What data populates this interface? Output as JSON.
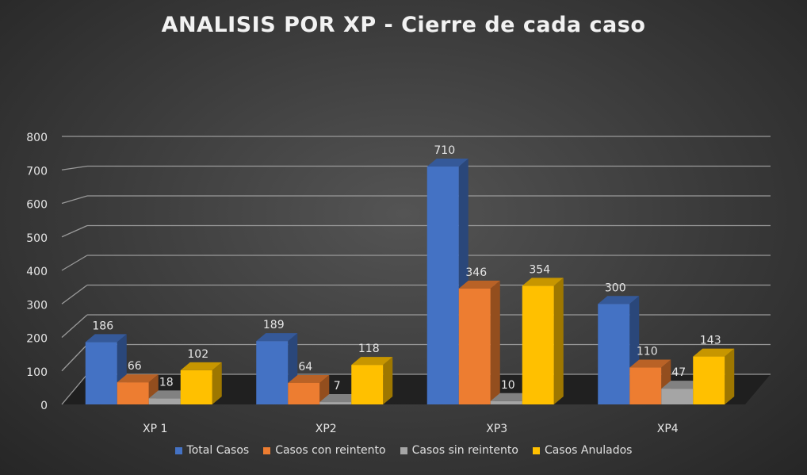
{
  "chart_data": {
    "type": "bar",
    "title": "ANALISIS POR XP - Cierre de cada caso",
    "categories": [
      "XP 1",
      "XP2",
      "XP3",
      "XP4"
    ],
    "series": [
      {
        "name": "Total Casos",
        "values": [
          186,
          189,
          710,
          300
        ],
        "color": "#4472C4"
      },
      {
        "name": "Casos con reintento",
        "values": [
          66,
          64,
          346,
          110
        ],
        "color": "#ED7D31"
      },
      {
        "name": "Casos sin reintento",
        "values": [
          18,
          7,
          10,
          47
        ],
        "color": "#A5A5A5"
      },
      {
        "name": "Casos Anulados",
        "values": [
          102,
          118,
          354,
          143
        ],
        "color": "#FFC000"
      }
    ],
    "yticks": [
      "0",
      "100",
      "200",
      "300",
      "400",
      "500",
      "600",
      "700",
      "800"
    ],
    "ylim": [
      0,
      800
    ],
    "grid": true,
    "legend_position": "bottom"
  }
}
